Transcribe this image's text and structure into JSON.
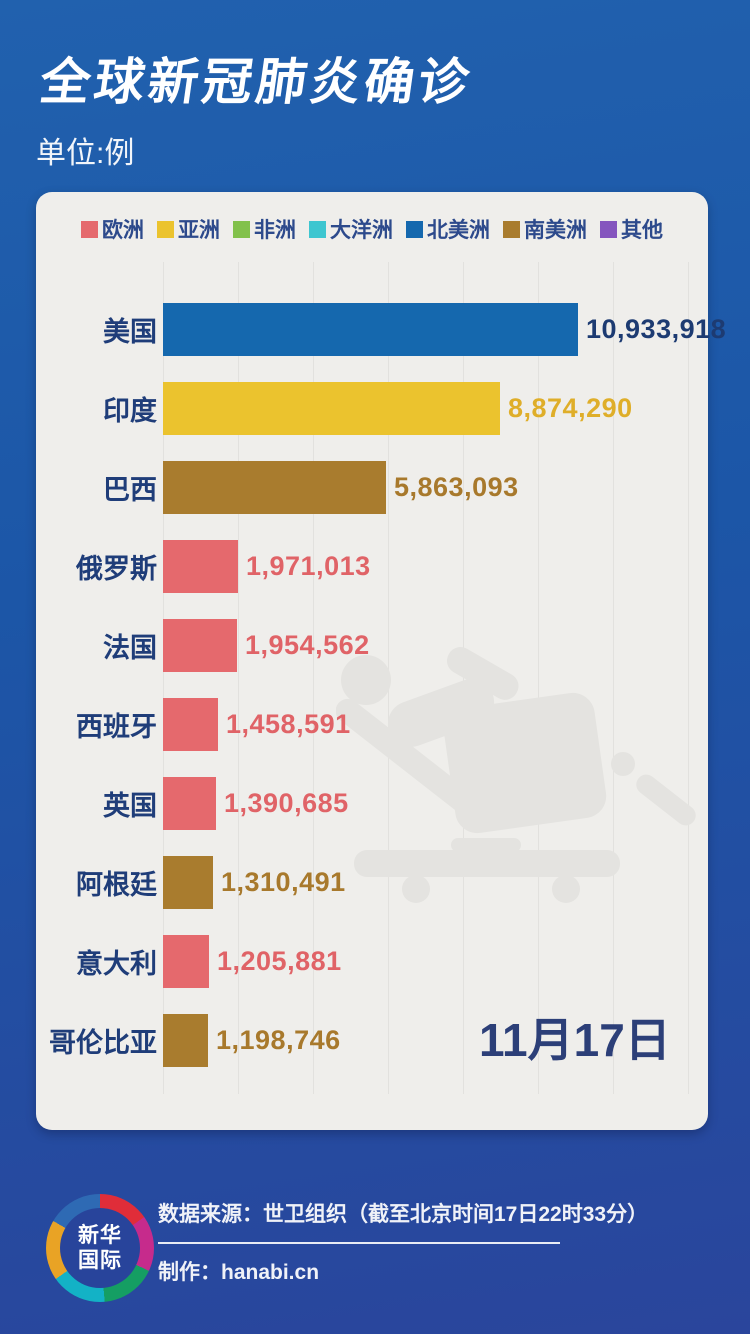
{
  "header": {
    "title": "全球新冠肺炎确诊",
    "unit": "单位:例"
  },
  "chart_data": {
    "type": "bar",
    "orientation": "horizontal",
    "title": "全球新冠肺炎确诊",
    "unit_label": "单位:例",
    "date_label": "11月17日",
    "grid": "vertical-faint",
    "legend_position": "top",
    "xlim": [
      0,
      10933918
    ],
    "legend": [
      {
        "label": "欧洲",
        "color": "#e5696d"
      },
      {
        "label": "亚洲",
        "color": "#ebc32e"
      },
      {
        "label": "非洲",
        "color": "#82c14b"
      },
      {
        "label": "大洋洲",
        "color": "#3ec6d0"
      },
      {
        "label": "北美洲",
        "color": "#1568ae"
      },
      {
        "label": "南美洲",
        "color": "#a97c2e"
      },
      {
        "label": "其他",
        "color": "#8555be"
      }
    ],
    "categories": [
      "美国",
      "印度",
      "巴西",
      "俄罗斯",
      "法国",
      "西班牙",
      "英国",
      "阿根廷",
      "意大利",
      "哥伦比亚"
    ],
    "values": [
      10933918,
      8874290,
      5863093,
      1971013,
      1954562,
      1458591,
      1390685,
      1310491,
      1205881,
      1198746
    ],
    "value_labels": [
      "10,933,918",
      "8,874,290",
      "5,863,093",
      "1,971,013",
      "1,954,562",
      "1,458,591",
      "1,390,685",
      "1,310,491",
      "1,205,881",
      "1,198,746"
    ],
    "continents": [
      "北美洲",
      "亚洲",
      "南美洲",
      "欧洲",
      "欧洲",
      "欧洲",
      "欧洲",
      "南美洲",
      "欧洲",
      "南美洲"
    ],
    "bar_colors": [
      "#1568ae",
      "#ebc32e",
      "#a97c2e",
      "#e5696d",
      "#e5696d",
      "#e5696d",
      "#e5696d",
      "#a97c2e",
      "#e5696d",
      "#a97c2e"
    ],
    "value_text_colors": [
      "#1d3b72",
      "#dfae29",
      "#a8792c",
      "#e06367",
      "#e06367",
      "#e06367",
      "#e06367",
      "#a8792c",
      "#e06367",
      "#a8792c"
    ]
  },
  "watermark": {
    "icon": "patient-on-stretcher-icon",
    "color": "#e4e3e0"
  },
  "footer": {
    "logo_line1": "新华",
    "logo_line2": "国际",
    "source": "数据来源：世卫组织（截至北京时间17日22时33分）",
    "maker": "制作：hanabi.cn"
  }
}
